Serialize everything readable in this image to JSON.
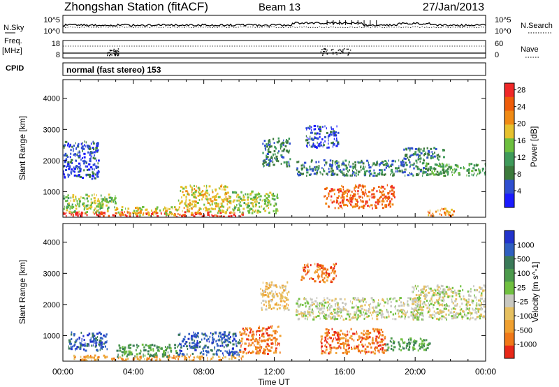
{
  "header": {
    "station": "Zhongshan Station (fitACF)",
    "beam": "Beam 13",
    "date": "27/Jan/2013"
  },
  "strips": {
    "nsky_label": "N.Sky",
    "nsky_ticks": [
      "10^5",
      "10^0"
    ],
    "nsearch_label": "N.Search",
    "nsearch_ticks": [
      "10^5",
      "10^0"
    ],
    "freq_label_1": "Freq.",
    "freq_label_2": "[MHz]",
    "freq_ticks": [
      "18",
      "8"
    ],
    "nave_label": "Nave",
    "nave_ticks": [
      "60",
      "0"
    ],
    "cpid_label": "CPID",
    "cpid_value": "normal (fast stereo) 153"
  },
  "colors": {
    "power": [
      "#1a1aff",
      "#2f4fd0",
      "#3c7a3c",
      "#3f9a5a",
      "#6dbf3f",
      "#e6c12e",
      "#f08a14",
      "#ee5c0a",
      "#f02828"
    ],
    "velocity": [
      "#2233cc",
      "#2f5fc0",
      "#3a7a58",
      "#4c9a4c",
      "#70c040",
      "#c8c8c0",
      "#e6c060",
      "#f0a030",
      "#f07818",
      "#e82818"
    ]
  },
  "chart_data": [
    {
      "type": "heatmap",
      "quantity": "Power",
      "xlabel": "",
      "ylabel": "Slant Range [km]",
      "x_ticks": [
        "00:00",
        "04:00",
        "08:00",
        "12:00",
        "16:00",
        "20:00",
        "00:00"
      ],
      "y_ticks": [
        1000,
        2000,
        3000,
        4000
      ],
      "ylim": [
        180,
        4600
      ],
      "colorbar_label": "Power [dB]",
      "colorbar_ticks": [
        4,
        8,
        12,
        16,
        20,
        24,
        28
      ],
      "regions": [
        {
          "t": [
            0.0,
            10.2
          ],
          "r": [
            180,
            330
          ],
          "level": 8
        },
        {
          "t": [
            0.0,
            3.0
          ],
          "r": [
            300,
            900
          ],
          "level": 4
        },
        {
          "t": [
            3.0,
            6.5
          ],
          "r": [
            230,
            500
          ],
          "level": 5
        },
        {
          "t": [
            6.5,
            9.5
          ],
          "r": [
            300,
            1200
          ],
          "level": 5
        },
        {
          "t": [
            9.6,
            12.2
          ],
          "r": [
            300,
            1000
          ],
          "level": 4
        },
        {
          "t": [
            11.3,
            12.9
          ],
          "r": [
            1800,
            2700
          ],
          "level": 2
        },
        {
          "t": [
            0.0,
            2.0
          ],
          "r": [
            1400,
            2600
          ],
          "level": 1
        },
        {
          "t": [
            13.2,
            20.8
          ],
          "r": [
            1500,
            2000
          ],
          "level": 2
        },
        {
          "t": [
            14.8,
            18.8
          ],
          "r": [
            450,
            1200
          ],
          "level": 7
        },
        {
          "t": [
            13.7,
            15.6
          ],
          "r": [
            2400,
            3100
          ],
          "level": 1
        },
        {
          "t": [
            19.3,
            21.6
          ],
          "r": [
            2000,
            2400
          ],
          "level": 2
        },
        {
          "t": [
            20.4,
            24.0
          ],
          "r": [
            1500,
            1900
          ],
          "level": 3
        },
        {
          "t": [
            20.7,
            22.2
          ],
          "r": [
            200,
            450
          ],
          "level": 6
        }
      ]
    },
    {
      "type": "heatmap",
      "quantity": "Velocity",
      "xlabel": "Time UT",
      "ylabel": "Slant Range [km]",
      "x_ticks": [
        "00:00",
        "04:00",
        "08:00",
        "12:00",
        "16:00",
        "20:00",
        "00:00"
      ],
      "y_ticks": [
        1000,
        2000,
        3000,
        4000
      ],
      "ylim": [
        180,
        4600
      ],
      "colorbar_label": "Velocity [m s^-1]",
      "colorbar_ticks": [
        1000,
        500,
        100,
        25,
        -25,
        -100,
        -500,
        -1000
      ],
      "regions": [
        {
          "t": [
            0.0,
            10.2
          ],
          "r": [
            180,
            350
          ],
          "level": 7
        },
        {
          "t": [
            0.3,
            2.5
          ],
          "r": [
            500,
            1100
          ],
          "level": 1
        },
        {
          "t": [
            3.0,
            6.5
          ],
          "r": [
            300,
            700
          ],
          "level": 3
        },
        {
          "t": [
            6.5,
            10.0
          ],
          "r": [
            350,
            1100
          ],
          "level": 1
        },
        {
          "t": [
            10.0,
            12.3
          ],
          "r": [
            400,
            1300
          ],
          "level": 8
        },
        {
          "t": [
            11.2,
            12.8
          ],
          "r": [
            1800,
            2700
          ],
          "level": 6
        },
        {
          "t": [
            13.5,
            15.5
          ],
          "r": [
            2700,
            3300
          ],
          "level": 8
        },
        {
          "t": [
            13.2,
            20.5
          ],
          "r": [
            1500,
            2200
          ],
          "level": 5
        },
        {
          "t": [
            14.6,
            18.3
          ],
          "r": [
            400,
            1200
          ],
          "level": 8
        },
        {
          "t": [
            18.3,
            20.8
          ],
          "r": [
            500,
            900
          ],
          "level": 3
        },
        {
          "t": [
            19.8,
            24.0
          ],
          "r": [
            1500,
            2600
          ],
          "level": 5
        }
      ]
    }
  ]
}
